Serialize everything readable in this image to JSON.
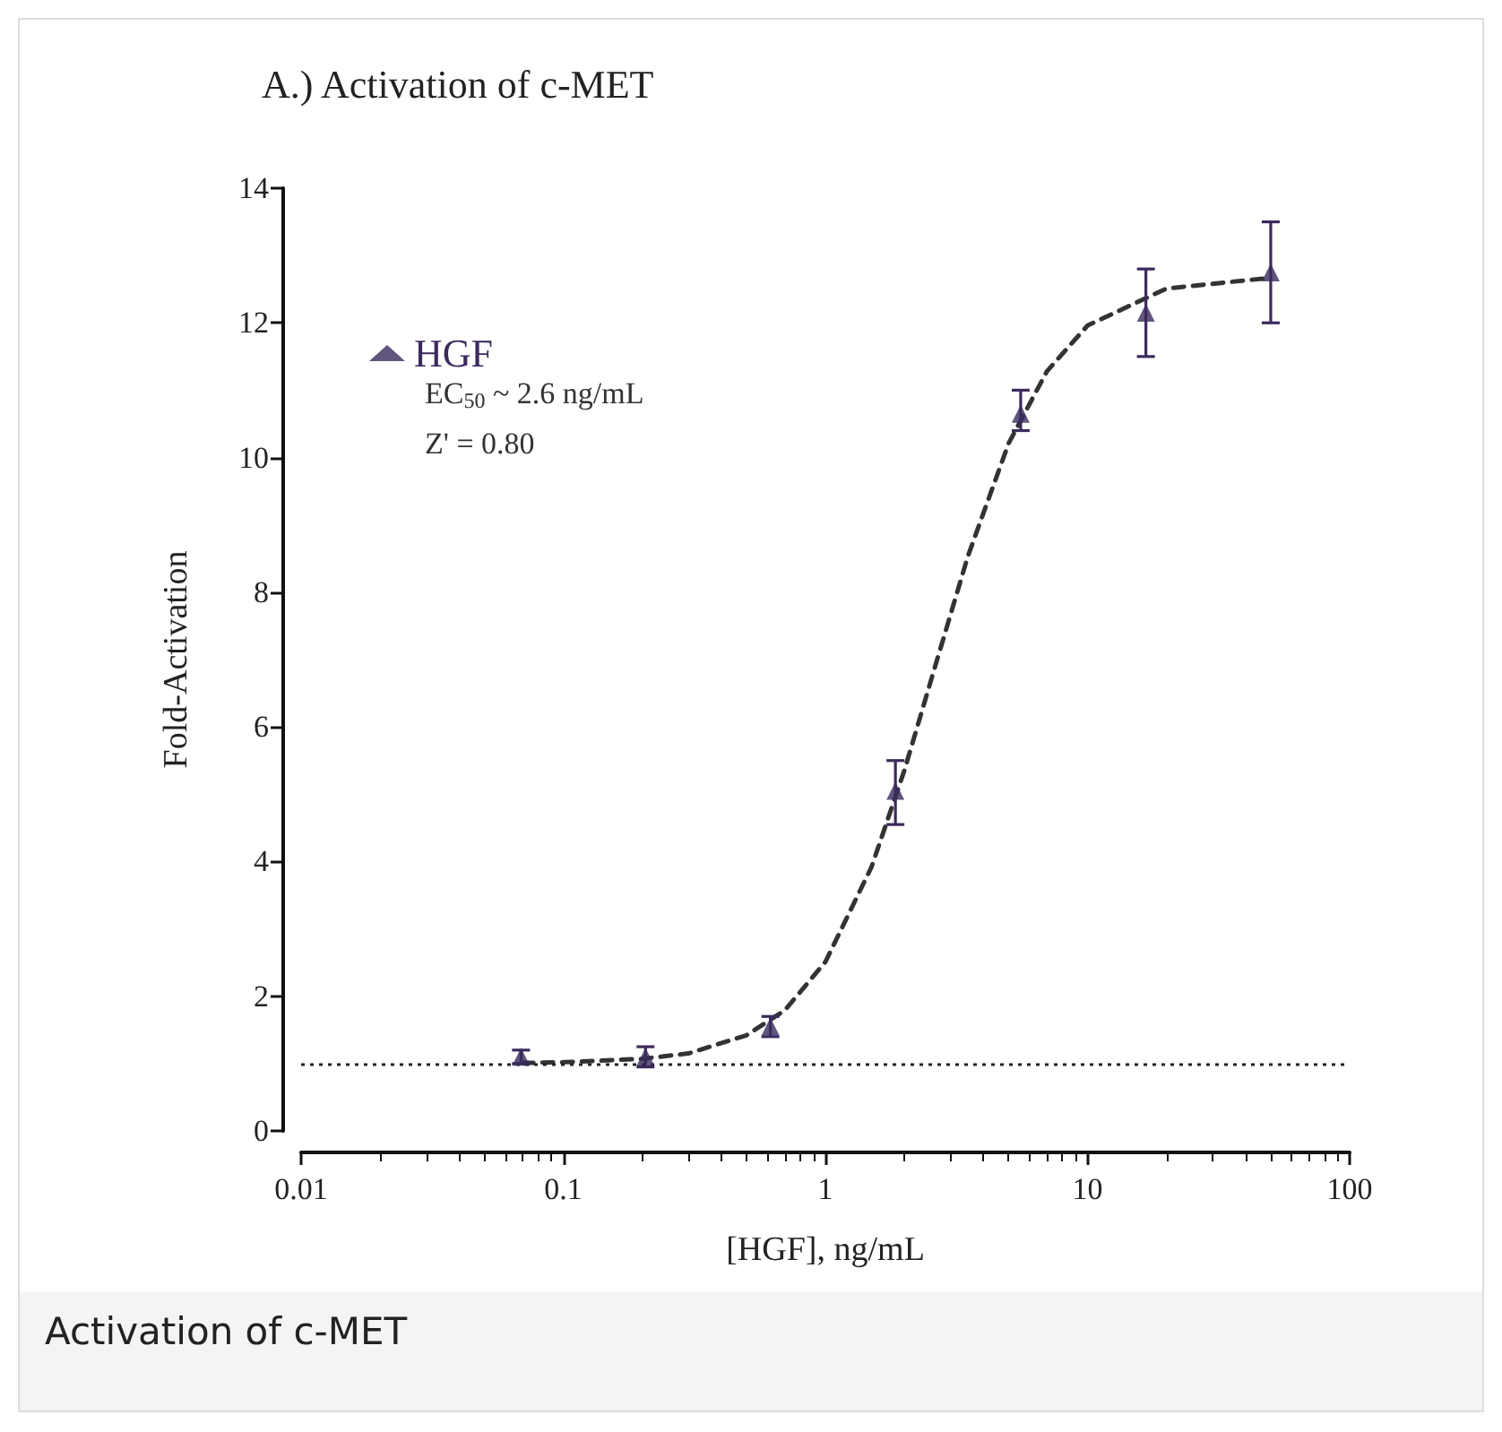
{
  "chart_data": {
    "type": "scatter",
    "title": "A.) Activation of c-MET",
    "xlabel": "[HGF], ng/mL",
    "ylabel": "Fold-Activation",
    "annotations": [
      "EC$_{50}$ ~ 2.6 ng/mL",
      "Z' = 0.80",
      "Activation of c-MET"
    ],
    "series": [
      {
        "name": "HGF",
        "color": "#3b2a5c",
        "marker": "triangle",
        "x": [
          0.069,
          0.206,
          0.617,
          1.85,
          5.56,
          16.7,
          50
        ],
        "values": [
          1.1,
          1.1,
          1.55,
          5.05,
          10.65,
          12.15,
          12.75
        ],
        "errors": [
          0.1,
          0.15,
          0.15,
          [
            4.55,
            5.5
          ],
          [
            10.4,
            11.0
          ],
          [
            11.5,
            12.8
          ],
          [
            12.0,
            13.5
          ]
        ]
      },
      {
        "type": "line",
        "color": "#333333",
        "line_style": "dashed",
        "marker": "none",
        "x": [
          0.07,
          0.1,
          0.2,
          0.3,
          0.5,
          0.7,
          1,
          1.5,
          2,
          2.6,
          3.5,
          5,
          7,
          10,
          20,
          50
        ],
        "values": [
          1.01,
          1.02,
          1.07,
          1.15,
          1.42,
          1.79,
          2.51,
          3.92,
          5.35,
          6.85,
          8.54,
          10.21,
          11.28,
          11.96,
          12.51,
          12.67
        ]
      }
    ],
    "ref_lines": [
      {
        "axis": "y",
        "value": 1,
        "line_style": "dotted",
        "color": "#222222"
      }
    ],
    "log": "x",
    "xlim": [
      0.01,
      100
    ],
    "xticks": [
      0.01,
      0.1,
      1,
      10,
      100
    ],
    "ylim": [
      0,
      14
    ],
    "yticks": [
      0,
      2,
      4,
      6,
      8,
      10,
      12,
      14
    ],
    "grid": false,
    "legend": "top left"
  }
}
